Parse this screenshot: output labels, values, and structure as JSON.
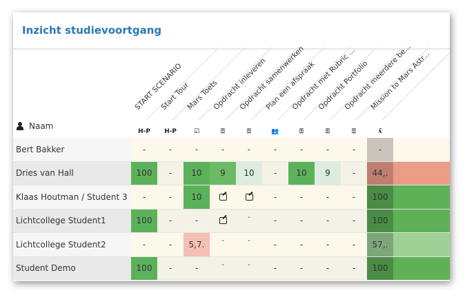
{
  "title": "Inzicht studievoortgang",
  "name_header": "Naam",
  "columns": [
    {
      "label": "START SCENARIO",
      "icon": "h5p-icon",
      "icon_text": "H-P"
    },
    {
      "label": "Start Tour",
      "icon": "h5p-icon",
      "icon_text": "H-P"
    },
    {
      "label": "Mars Toets",
      "icon": "checkbox-icon",
      "icon_text": "☑"
    },
    {
      "label": "Opdracht inleveren",
      "icon": "file-upload-icon",
      "icon_text": "⍐"
    },
    {
      "label": "Opdracht samenwerken",
      "icon": "file-upload-icon",
      "icon_text": "⍐"
    },
    {
      "label": "Plan een afspraak",
      "icon": "user-appointment-icon",
      "icon_text": "👥"
    },
    {
      "label": "Opdracht met Rubric ...",
      "icon": "file-upload-icon",
      "icon_text": "⍐"
    },
    {
      "label": "Opdracht Portfolio",
      "icon": "file-upload-icon",
      "icon_text": "⍐"
    },
    {
      "label": "Opdracht meerdere be...",
      "icon": "file-upload-icon",
      "icon_text": "⍐"
    },
    {
      "label": "Mission to Mars Astr...",
      "icon": "mean-icon",
      "icon_text": "x̄"
    }
  ],
  "colors": {
    "green": "#5cb25a",
    "green2": "#6cba64",
    "palegreen": "#deece0",
    "lightred": "#f5c0b4",
    "avg_green": "#4b8c45",
    "avg_red": "#bf7e70",
    "avg_mid": "#7da77a",
    "avg_none": "#c9c5bb",
    "bar_green": "#5eb157",
    "bar_red": "#eb9c87",
    "bar_light": "#9fd197"
  },
  "rows": [
    {
      "name": "Bert Bakker",
      "cells": [
        "-",
        "-",
        "-",
        "-",
        "-",
        "-",
        "-",
        "-",
        "-"
      ],
      "fills": [
        "",
        "",
        "",
        "",
        "",
        "",
        "",
        "",
        ""
      ],
      "avg": "-",
      "avg_fill": "avg_none",
      "bar_fill": ""
    },
    {
      "name": "Dries van Hall",
      "cells": [
        "100",
        "-",
        "10",
        "9",
        "10",
        "-",
        "10",
        "9",
        "-"
      ],
      "fills": [
        "green",
        "",
        "green",
        "green2",
        "palegreen",
        "",
        "green",
        "palegreen",
        ""
      ],
      "avg": "44,.",
      "avg_fill": "avg_red",
      "bar_fill": "bar_red"
    },
    {
      "name": "Klaas Houtman / Student 3",
      "cells": [
        "-",
        "-",
        "10",
        "edit",
        "edit",
        "-",
        "-",
        "-",
        "-"
      ],
      "fills": [
        "",
        "",
        "green",
        "",
        "",
        "",
        "",
        "",
        ""
      ],
      "avg": "100",
      "avg_fill": "avg_green",
      "bar_fill": "bar_green"
    },
    {
      "name": "Lichtcollege Student1",
      "cells": [
        "100",
        "-",
        "-",
        "edit",
        "-^",
        "-",
        "-",
        "-",
        "-"
      ],
      "fills": [
        "green",
        "",
        "",
        "",
        "",
        "",
        "",
        "",
        ""
      ],
      "avg": "100",
      "avg_fill": "avg_green",
      "bar_fill": "bar_green"
    },
    {
      "name": "Lichtcollege Student2",
      "cells": [
        "-",
        "-",
        "5,7.",
        "-^",
        "-^",
        "-",
        "-",
        "-",
        "-"
      ],
      "fills": [
        "",
        "",
        "lightred",
        "",
        "",
        "",
        "",
        "",
        ""
      ],
      "avg": "57,.",
      "avg_fill": "avg_mid",
      "bar_fill": "bar_light"
    },
    {
      "name": "Student Demo",
      "cells": [
        "100",
        "-",
        "-",
        "-^",
        "-^",
        "-",
        "-",
        "-",
        "-"
      ],
      "fills": [
        "green",
        "",
        "",
        "",
        "",
        "",
        "",
        "",
        ""
      ],
      "avg": "100",
      "avg_fill": "avg_green",
      "bar_fill": "bar_green"
    }
  ]
}
